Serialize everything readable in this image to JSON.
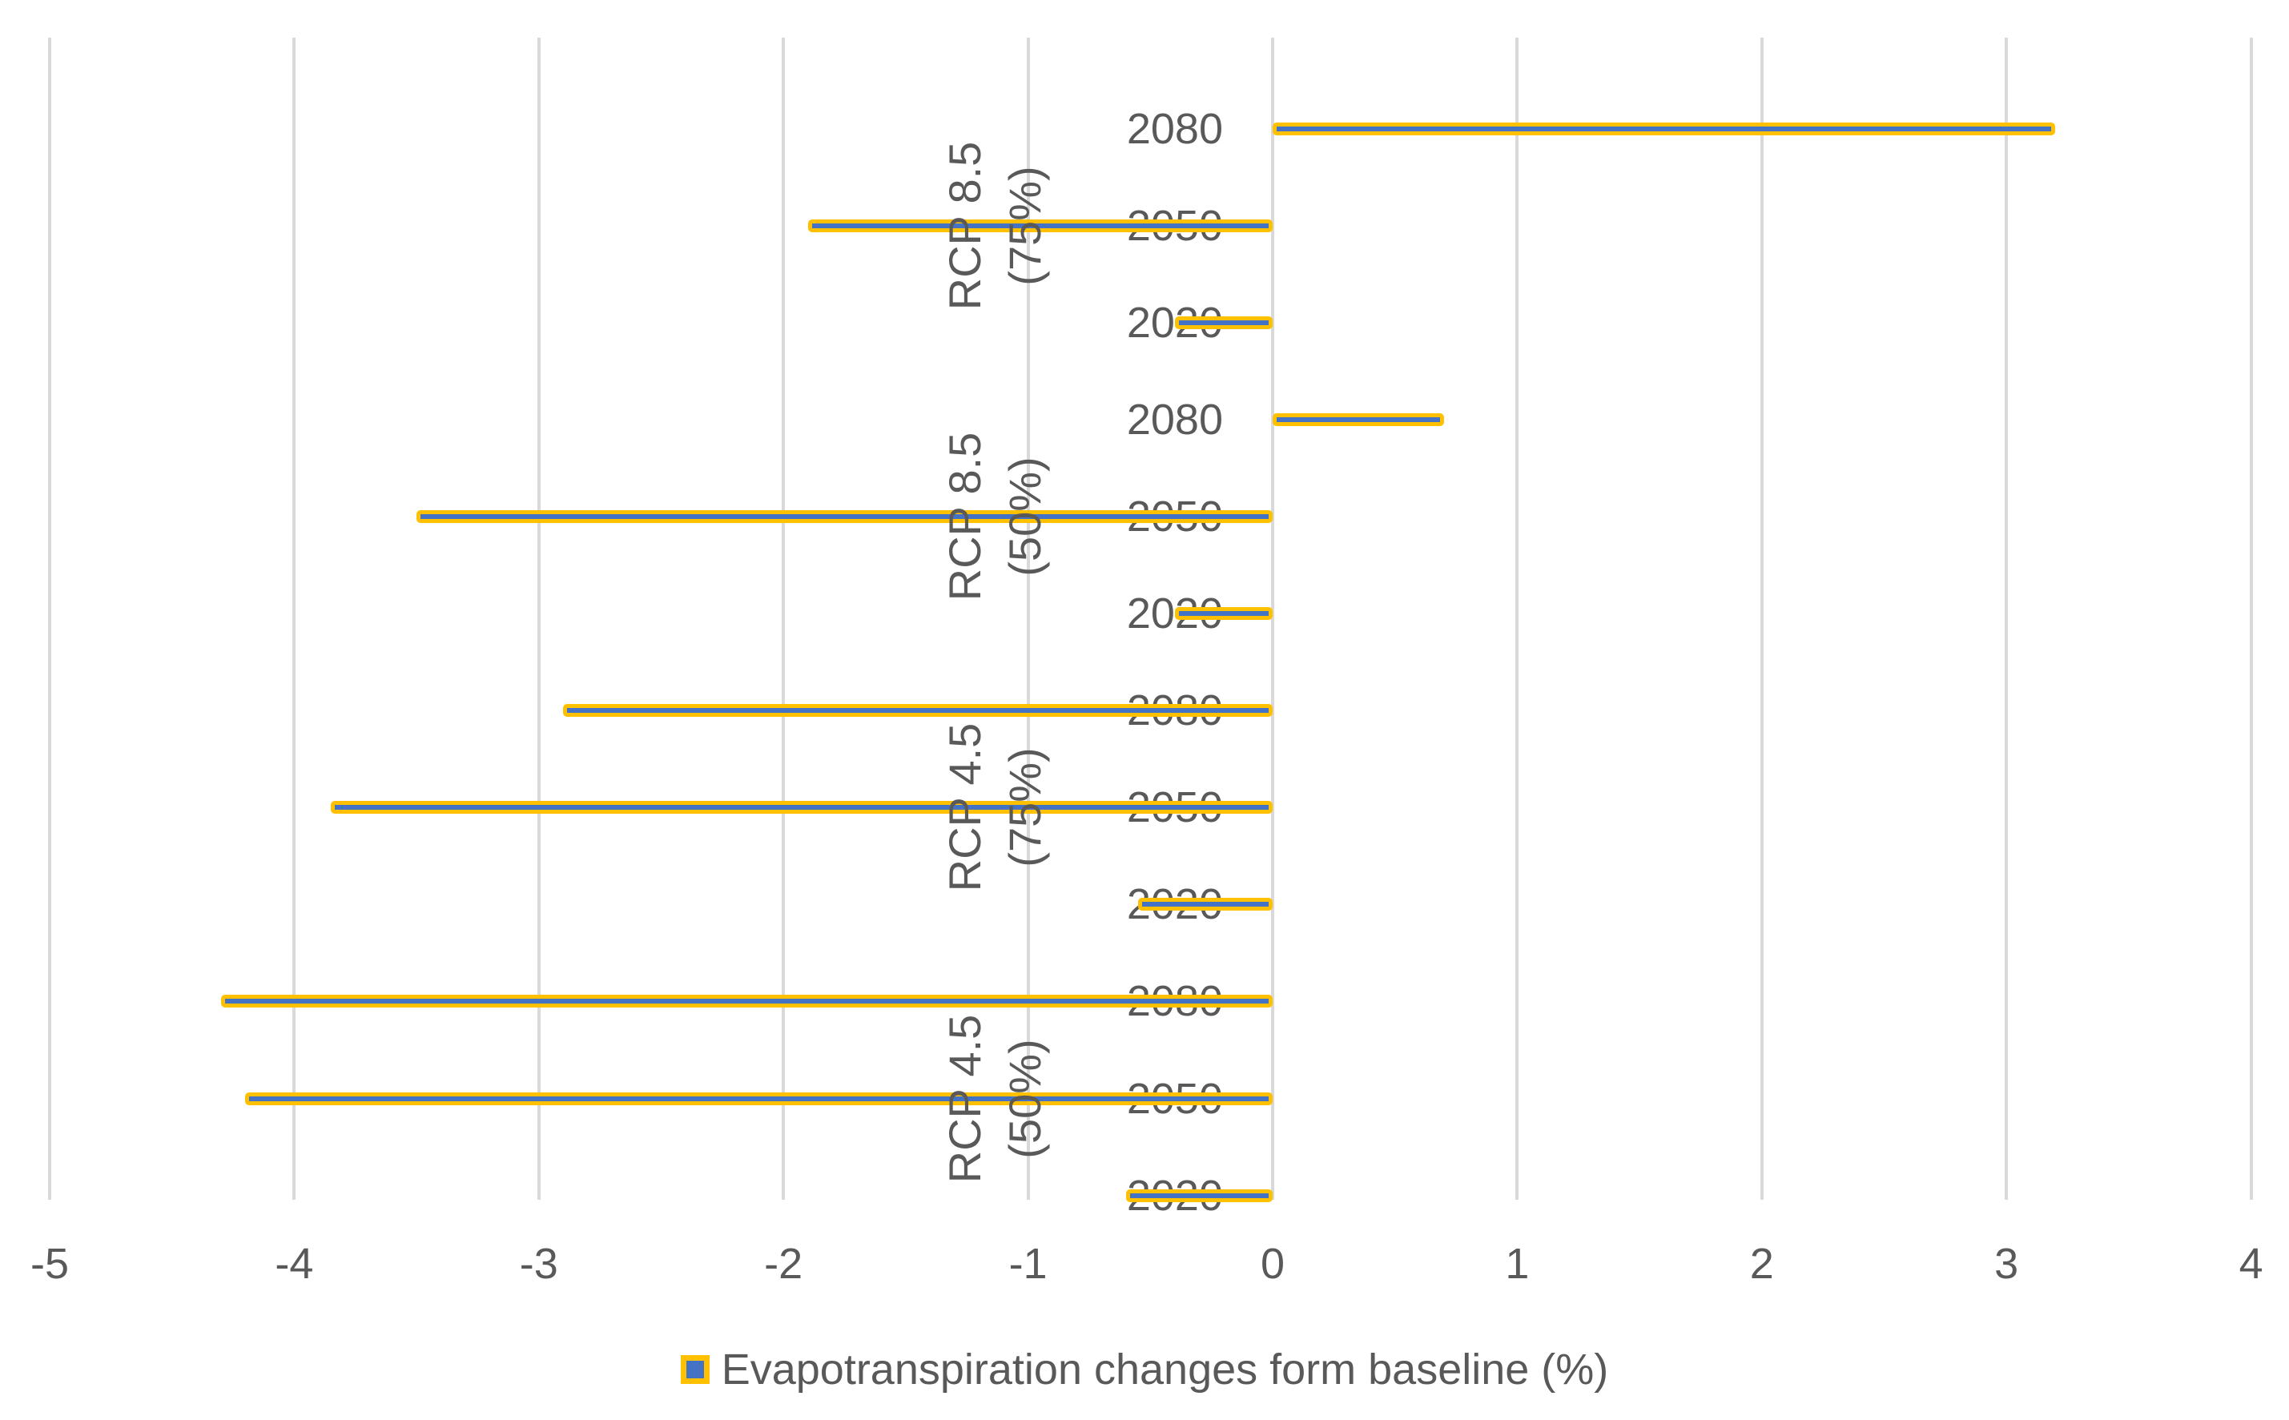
{
  "chart_data": {
    "type": "bar",
    "orientation": "horizontal",
    "title": "",
    "xlabel": "",
    "ylabel": "",
    "xlim": [
      -5,
      4
    ],
    "x_ticks": [
      "-5",
      "-4",
      "-3",
      "-2",
      "-1",
      "0",
      "1",
      "2",
      "3",
      "4"
    ],
    "grid": true,
    "legend_position": "bottom",
    "series_name": "Evapotranspiration changes form baseline (%)",
    "groups": [
      {
        "label_line1": "RCP 8.5",
        "label_line2": "(75%)",
        "bars": [
          {
            "category": "2080",
            "value": 3.2
          },
          {
            "category": "2050",
            "value": -1.9
          },
          {
            "category": "2020",
            "value": -0.4
          }
        ]
      },
      {
        "label_line1": "RCP 8.5",
        "label_line2": "(50%)",
        "bars": [
          {
            "category": "2080",
            "value": 0.7
          },
          {
            "category": "2050",
            "value": -3.5
          },
          {
            "category": "2020",
            "value": -0.4
          }
        ]
      },
      {
        "label_line1": "RCP 4.5",
        "label_line2": "(75%)",
        "bars": [
          {
            "category": "2080",
            "value": -2.9
          },
          {
            "category": "2050",
            "value": -3.85
          },
          {
            "category": "2020",
            "value": -0.55
          }
        ]
      },
      {
        "label_line1": "RCP 4.5",
        "label_line2": "(50%)",
        "bars": [
          {
            "category": "2080",
            "value": -4.3
          },
          {
            "category": "2050",
            "value": -4.2
          },
          {
            "category": "2020",
            "value": -0.6
          }
        ]
      }
    ]
  },
  "legend": {
    "label": "Evapotranspiration changes form baseline (%)"
  },
  "colors": {
    "bar_fill": "#4472C4",
    "bar_border": "#FFC000",
    "text": "#595959",
    "gridline": "#D9D9D9"
  }
}
